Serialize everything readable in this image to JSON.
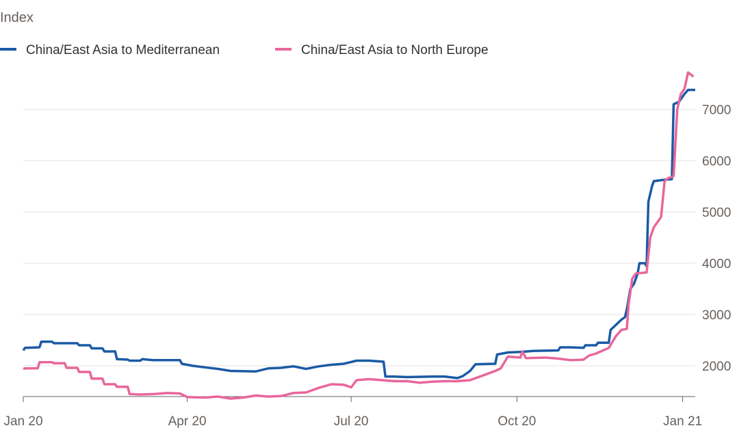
{
  "chart_data": {
    "type": "line",
    "title": "",
    "ylabel": "Index",
    "xlabel": "",
    "ylim": [
      1400,
      7800
    ],
    "yticks": [
      2000,
      3000,
      4000,
      5000,
      6000,
      7000
    ],
    "xticks": [
      {
        "value": "2020-01-01",
        "label": "Jan 20"
      },
      {
        "value": "2020-04-01",
        "label": "Apr 20"
      },
      {
        "value": "2020-07-01",
        "label": "Jul 20"
      },
      {
        "value": "2020-10-01",
        "label": "Oct 20"
      },
      {
        "value": "2021-01-01",
        "label": "Jan 21"
      }
    ],
    "xlim": [
      "2020-01-01",
      "2021-01-08"
    ],
    "grid": true,
    "legend_position": "top-left",
    "series": [
      {
        "name": "China/East Asia to Mediterranean",
        "color": "#1a5aa5",
        "points": [
          [
            "2020-01-01",
            2300
          ],
          [
            "2020-01-02",
            2350
          ],
          [
            "2020-01-10",
            2360
          ],
          [
            "2020-01-11",
            2470
          ],
          [
            "2020-01-17",
            2470
          ],
          [
            "2020-01-18",
            2440
          ],
          [
            "2020-01-31",
            2440
          ],
          [
            "2020-02-01",
            2400
          ],
          [
            "2020-02-07",
            2400
          ],
          [
            "2020-02-08",
            2340
          ],
          [
            "2020-02-14",
            2340
          ],
          [
            "2020-02-15",
            2280
          ],
          [
            "2020-02-21",
            2280
          ],
          [
            "2020-02-22",
            2130
          ],
          [
            "2020-02-28",
            2120
          ],
          [
            "2020-02-29",
            2100
          ],
          [
            "2020-03-06",
            2100
          ],
          [
            "2020-03-07",
            2130
          ],
          [
            "2020-03-13",
            2110
          ],
          [
            "2020-03-14",
            2110
          ],
          [
            "2020-03-28",
            2110
          ],
          [
            "2020-03-29",
            2040
          ],
          [
            "2020-04-04",
            2000
          ],
          [
            "2020-04-11",
            1970
          ],
          [
            "2020-04-18",
            1940
          ],
          [
            "2020-04-25",
            1900
          ],
          [
            "2020-05-09",
            1890
          ],
          [
            "2020-05-16",
            1950
          ],
          [
            "2020-05-23",
            1960
          ],
          [
            "2020-05-30",
            1990
          ],
          [
            "2020-06-06",
            1940
          ],
          [
            "2020-06-13",
            1990
          ],
          [
            "2020-06-20",
            2020
          ],
          [
            "2020-06-27",
            2040
          ],
          [
            "2020-07-04",
            2100
          ],
          [
            "2020-07-11",
            2100
          ],
          [
            "2020-07-19",
            2080
          ],
          [
            "2020-07-20",
            1790
          ],
          [
            "2020-07-25",
            1790
          ],
          [
            "2020-08-01",
            1780
          ],
          [
            "2020-08-15",
            1790
          ],
          [
            "2020-08-22",
            1790
          ],
          [
            "2020-08-29",
            1760
          ],
          [
            "2020-09-01",
            1800
          ],
          [
            "2020-09-05",
            1900
          ],
          [
            "2020-09-08",
            2030
          ],
          [
            "2020-09-19",
            2040
          ],
          [
            "2020-09-20",
            2220
          ],
          [
            "2020-09-26",
            2260
          ],
          [
            "2020-10-03",
            2270
          ],
          [
            "2020-10-10",
            2290
          ],
          [
            "2020-10-24",
            2300
          ],
          [
            "2020-10-25",
            2360
          ],
          [
            "2020-10-31",
            2360
          ],
          [
            "2020-11-07",
            2350
          ],
          [
            "2020-11-08",
            2400
          ],
          [
            "2020-11-14",
            2400
          ],
          [
            "2020-11-15",
            2450
          ],
          [
            "2020-11-21",
            2450
          ],
          [
            "2020-11-22",
            2700
          ],
          [
            "2020-11-25",
            2800
          ],
          [
            "2020-11-28",
            2900
          ],
          [
            "2020-11-30",
            2950
          ],
          [
            "2020-12-01",
            3100
          ],
          [
            "2020-12-03",
            3500
          ],
          [
            "2020-12-05",
            3600
          ],
          [
            "2020-12-07",
            3800
          ],
          [
            "2020-12-08",
            4000
          ],
          [
            "2020-12-11",
            4000
          ],
          [
            "2020-12-12",
            3940
          ],
          [
            "2020-12-13",
            5200
          ],
          [
            "2020-12-15",
            5500
          ],
          [
            "2020-12-16",
            5600
          ],
          [
            "2020-12-20",
            5620
          ],
          [
            "2020-12-26",
            5640
          ],
          [
            "2020-12-27",
            7100
          ],
          [
            "2020-12-30",
            7150
          ],
          [
            "2021-01-02",
            7300
          ],
          [
            "2021-01-04",
            7380
          ],
          [
            "2021-01-08",
            7380
          ]
        ]
      },
      {
        "name": "China/East Asia to North Europe",
        "color": "#e8669a",
        "points": [
          [
            "2020-01-01",
            1940
          ],
          [
            "2020-01-02",
            1950
          ],
          [
            "2020-01-09",
            1950
          ],
          [
            "2020-01-10",
            2070
          ],
          [
            "2020-01-17",
            2070
          ],
          [
            "2020-01-18",
            2050
          ],
          [
            "2020-01-24",
            2050
          ],
          [
            "2020-01-25",
            1960
          ],
          [
            "2020-01-31",
            1960
          ],
          [
            "2020-02-01",
            1880
          ],
          [
            "2020-02-07",
            1880
          ],
          [
            "2020-02-08",
            1750
          ],
          [
            "2020-02-14",
            1750
          ],
          [
            "2020-02-15",
            1640
          ],
          [
            "2020-02-21",
            1640
          ],
          [
            "2020-02-22",
            1590
          ],
          [
            "2020-02-28",
            1590
          ],
          [
            "2020-02-29",
            1450
          ],
          [
            "2020-03-06",
            1440
          ],
          [
            "2020-03-14",
            1450
          ],
          [
            "2020-03-21",
            1470
          ],
          [
            "2020-03-28",
            1460
          ],
          [
            "2020-04-01",
            1390
          ],
          [
            "2020-04-11",
            1380
          ],
          [
            "2020-04-18",
            1400
          ],
          [
            "2020-04-25",
            1360
          ],
          [
            "2020-05-02",
            1380
          ],
          [
            "2020-05-09",
            1420
          ],
          [
            "2020-05-16",
            1400
          ],
          [
            "2020-05-23",
            1410
          ],
          [
            "2020-05-30",
            1470
          ],
          [
            "2020-06-06",
            1480
          ],
          [
            "2020-06-13",
            1570
          ],
          [
            "2020-06-20",
            1640
          ],
          [
            "2020-06-27",
            1630
          ],
          [
            "2020-07-01",
            1580
          ],
          [
            "2020-07-04",
            1720
          ],
          [
            "2020-07-11",
            1740
          ],
          [
            "2020-07-18",
            1720
          ],
          [
            "2020-07-25",
            1700
          ],
          [
            "2020-08-01",
            1700
          ],
          [
            "2020-08-08",
            1670
          ],
          [
            "2020-08-15",
            1690
          ],
          [
            "2020-08-22",
            1700
          ],
          [
            "2020-08-29",
            1700
          ],
          [
            "2020-09-05",
            1720
          ],
          [
            "2020-09-12",
            1810
          ],
          [
            "2020-09-19",
            1900
          ],
          [
            "2020-09-22",
            1950
          ],
          [
            "2020-09-26",
            2180
          ],
          [
            "2020-10-03",
            2160
          ],
          [
            "2020-10-04",
            2280
          ],
          [
            "2020-10-06",
            2150
          ],
          [
            "2020-10-17",
            2160
          ],
          [
            "2020-10-24",
            2140
          ],
          [
            "2020-10-31",
            2110
          ],
          [
            "2020-11-07",
            2120
          ],
          [
            "2020-11-10",
            2200
          ],
          [
            "2020-11-14",
            2240
          ],
          [
            "2020-11-21",
            2350
          ],
          [
            "2020-11-25",
            2580
          ],
          [
            "2020-11-28",
            2700
          ],
          [
            "2020-12-01",
            2720
          ],
          [
            "2020-12-02",
            3200
          ],
          [
            "2020-12-04",
            3700
          ],
          [
            "2020-12-06",
            3800
          ],
          [
            "2020-12-12",
            3820
          ],
          [
            "2020-12-14",
            4500
          ],
          [
            "2020-12-16",
            4700
          ],
          [
            "2020-12-18",
            4800
          ],
          [
            "2020-12-20",
            4900
          ],
          [
            "2020-12-22",
            5600
          ],
          [
            "2020-12-24",
            5660
          ],
          [
            "2020-12-27",
            5700
          ],
          [
            "2020-12-29",
            7000
          ],
          [
            "2020-12-31",
            7300
          ],
          [
            "2021-01-02",
            7400
          ],
          [
            "2021-01-04",
            7720
          ],
          [
            "2021-01-07",
            7640
          ]
        ]
      }
    ]
  }
}
